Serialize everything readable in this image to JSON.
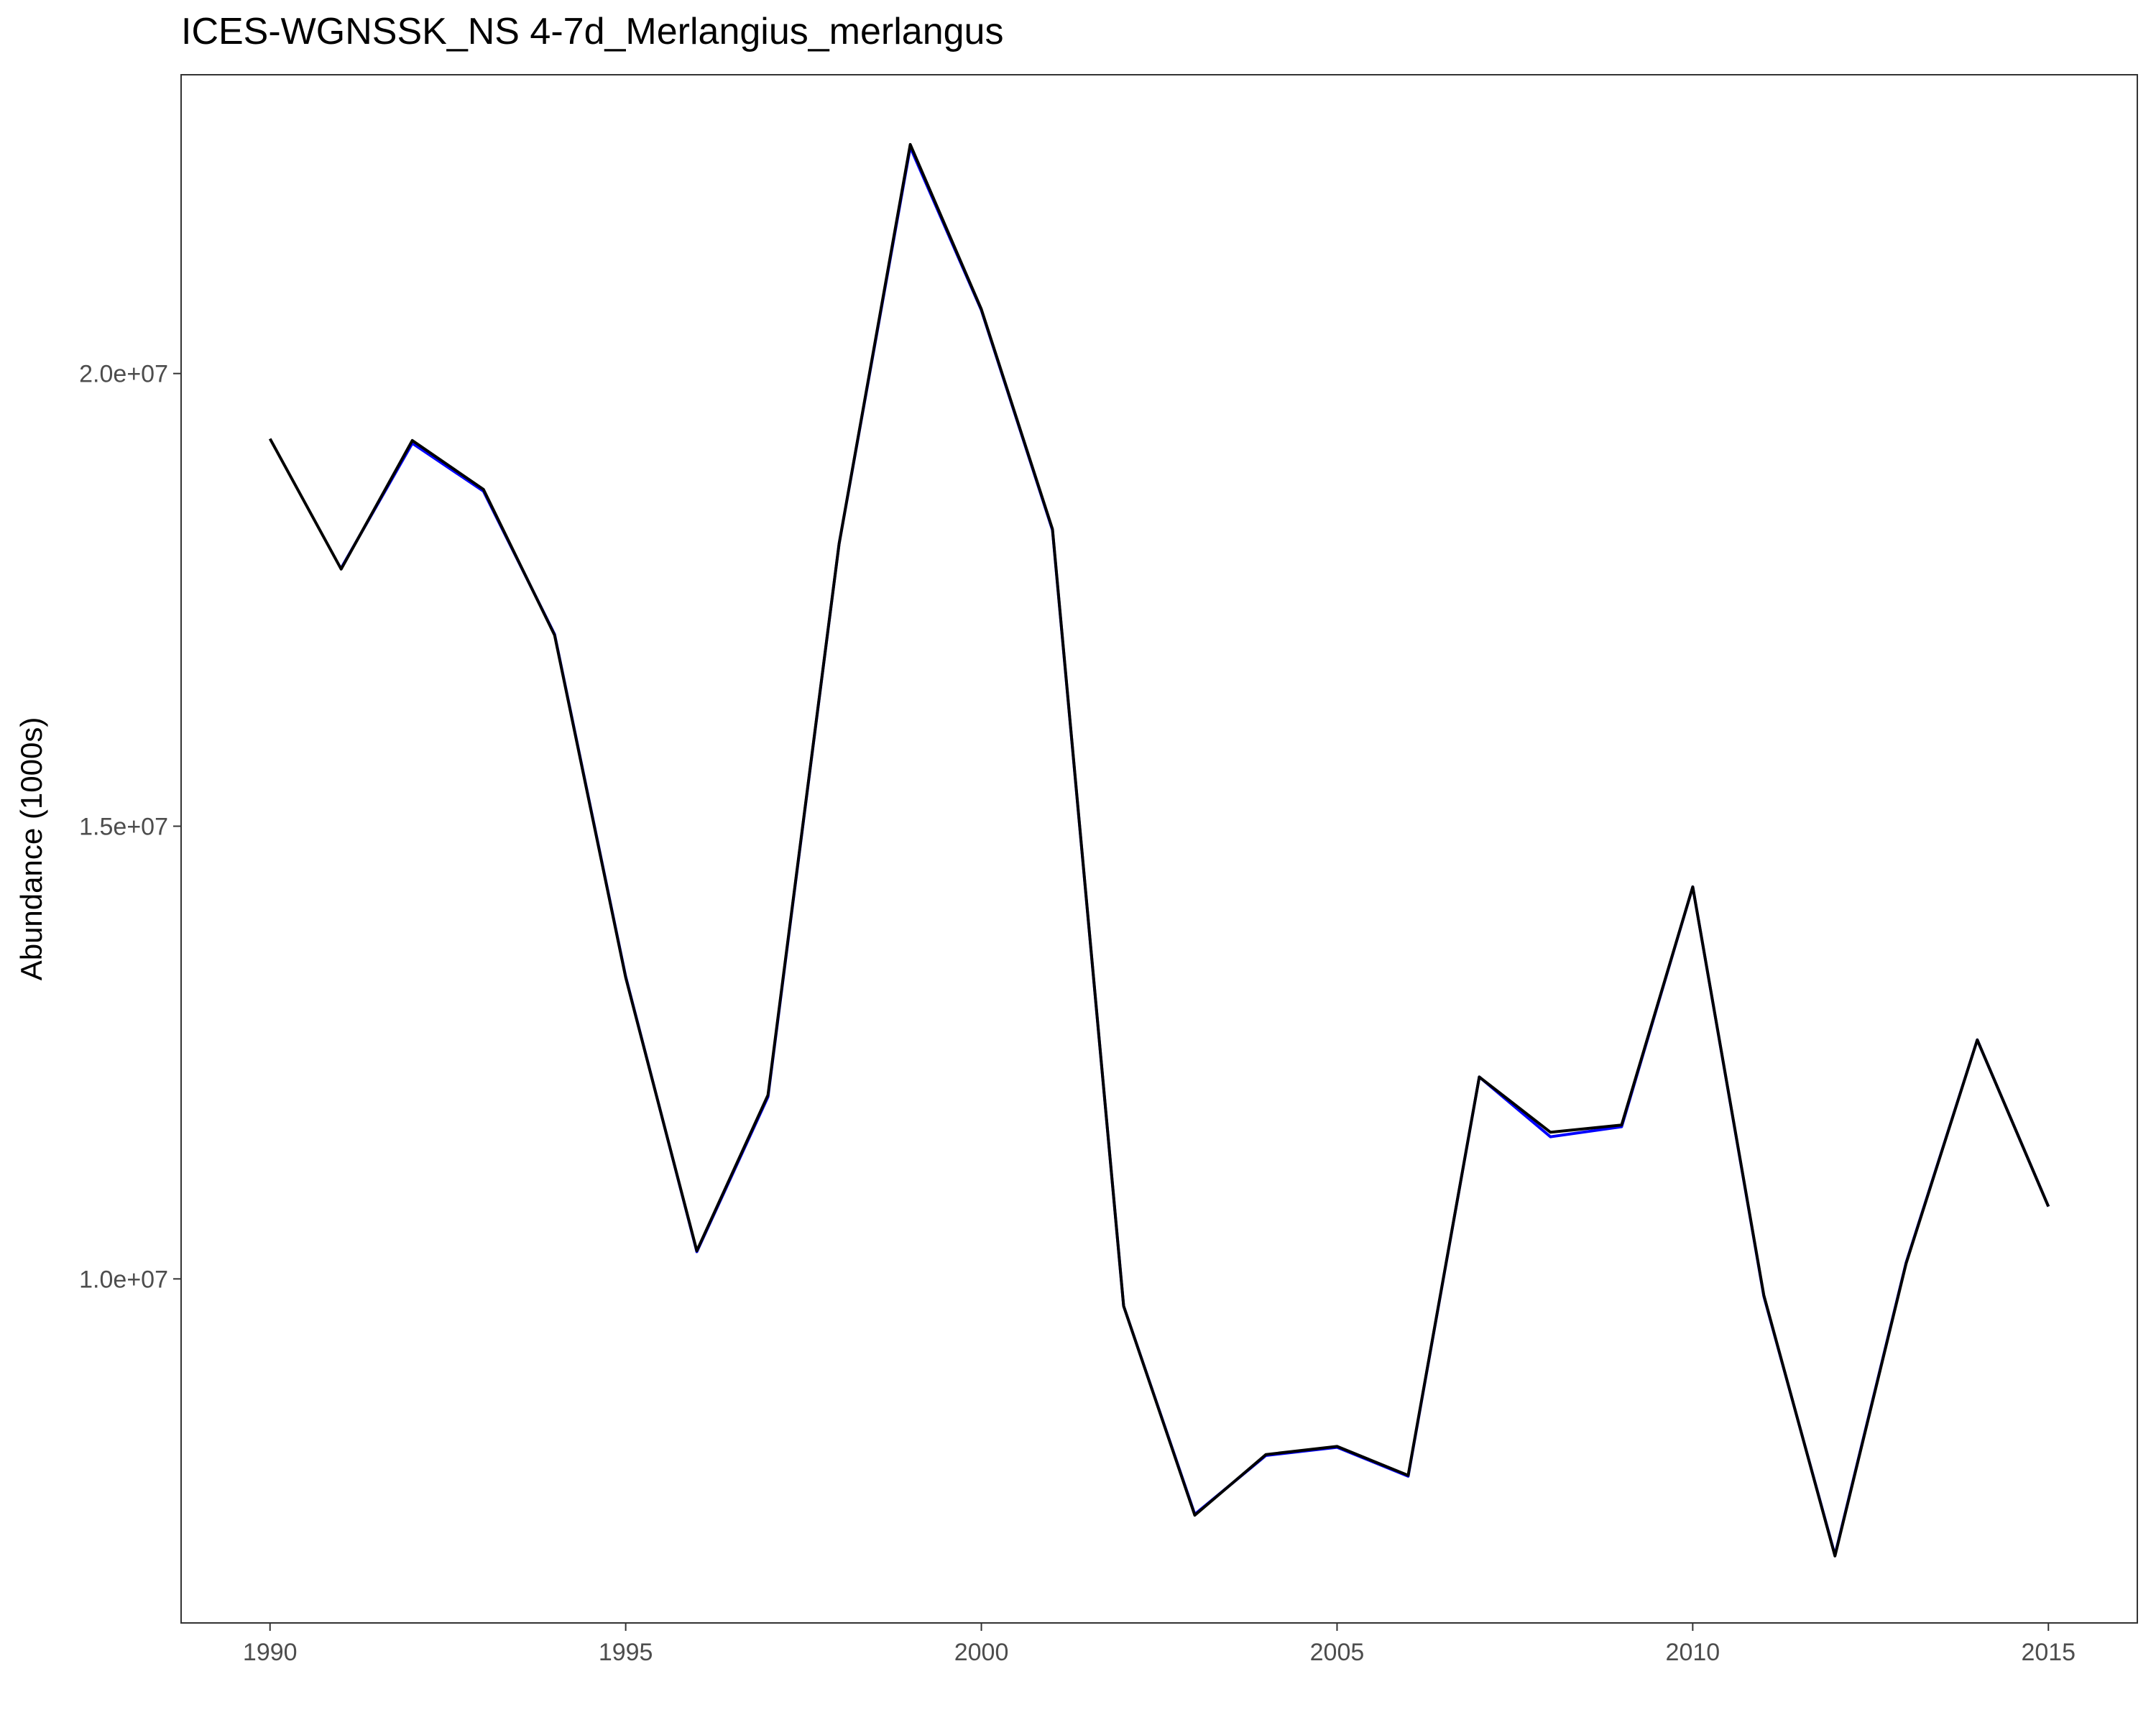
{
  "title": "ICES-WGNSSK_NS 4-7d_Merlangius_merlangus",
  "chart_data": {
    "type": "line",
    "title": "ICES-WGNSSK_NS 4-7d_Merlangius_merlangus",
    "xlabel": "",
    "ylabel": "Abundance (1000s)",
    "x": [
      1990,
      1991,
      1992,
      1993,
      1994,
      1995,
      1996,
      1997,
      1998,
      1999,
      2000,
      2001,
      2002,
      2003,
      2004,
      2005,
      2006,
      2007,
      2008,
      2009,
      2010,
      2011,
      2012,
      2013,
      2014,
      2015
    ],
    "xlim": [
      1988.75,
      2016.25
    ],
    "ylim": [
      6200000,
      23300000
    ],
    "xticks": [
      1990,
      1995,
      2000,
      2005,
      2010,
      2015
    ],
    "xtick_labels": [
      "1990",
      "1995",
      "2000",
      "2005",
      "2010",
      "2015"
    ],
    "yticks": [
      10000000,
      15000000,
      20000000
    ],
    "ytick_labels": [
      "1.0e+07",
      "1.5e+07",
      "2.0e+07"
    ],
    "grid": false,
    "series": [
      {
        "color": "#0000ff",
        "values": [
          null,
          17850000,
          19230000,
          18700000,
          17120000,
          13340000,
          10300000,
          12010000,
          18120000,
          22500000,
          20700000,
          18270000,
          9700000,
          7400000,
          8050000,
          8140000,
          7820000,
          12230000,
          11570000,
          11680000,
          14330000,
          9810000,
          6950000,
          10180000,
          12640000,
          10800000
        ]
      },
      {
        "color": "#000000",
        "values": [
          19280000,
          17840000,
          19260000,
          18720000,
          17110000,
          13330000,
          10310000,
          12030000,
          18120000,
          22530000,
          20710000,
          18280000,
          9700000,
          7390000,
          8060000,
          8150000,
          7830000,
          12230000,
          11620000,
          11700000,
          14330000,
          9820000,
          6940000,
          10170000,
          12640000,
          10800000
        ]
      }
    ]
  }
}
